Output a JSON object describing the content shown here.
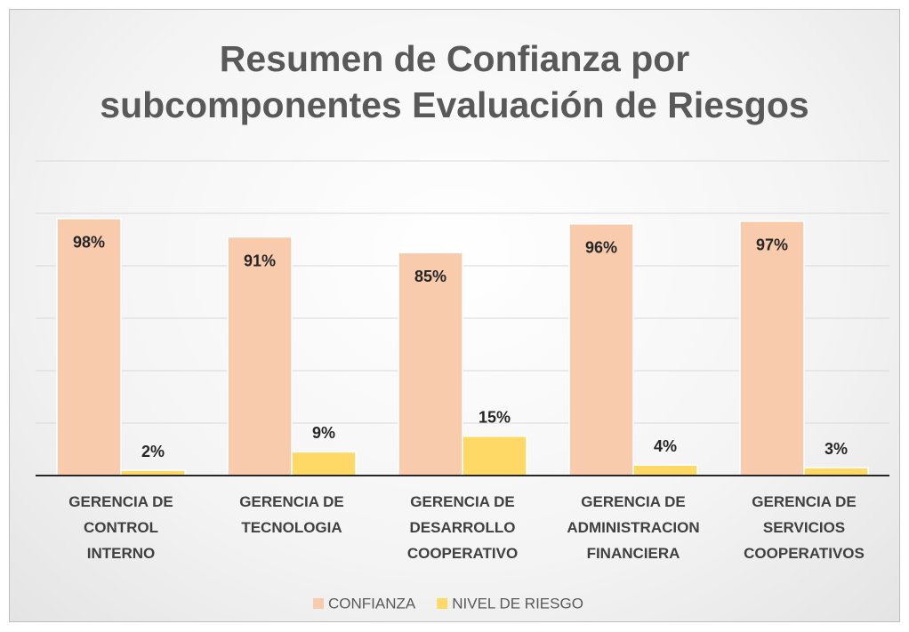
{
  "chart_data": {
    "type": "bar",
    "title": "Resumen de Confianza por\nsubcomponentes Evaluación de Riesgos",
    "categories": [
      "GERENCIA DE\nCONTROL\nINTERNO",
      "GERENCIA DE\nTECNOLOGIA",
      "GERENCIA DE\nDESARROLLO\nCOOPERATIVO",
      "GERENCIA DE\nADMINISTRACION\nFINANCIERA",
      "GERENCIA DE\nSERVICIOS\nCOOPERATIVOS"
    ],
    "series": [
      {
        "name": "CONFIANZA",
        "color": "#f8cbad",
        "values": [
          98,
          91,
          85,
          96,
          97
        ],
        "value_labels": [
          "98%",
          "91%",
          "85%",
          "96%",
          "97%"
        ]
      },
      {
        "name": "NIVEL DE RIESGO",
        "color": "#ffd966",
        "values": [
          2,
          9,
          15,
          4,
          3
        ],
        "value_labels": [
          "2%",
          "9%",
          "15%",
          "4%",
          "3%"
        ]
      }
    ],
    "ylim": [
      0,
      120
    ],
    "yticks": [
      0,
      20,
      40,
      60,
      80,
      100,
      120
    ],
    "grid": true,
    "legend": "bottom"
  }
}
